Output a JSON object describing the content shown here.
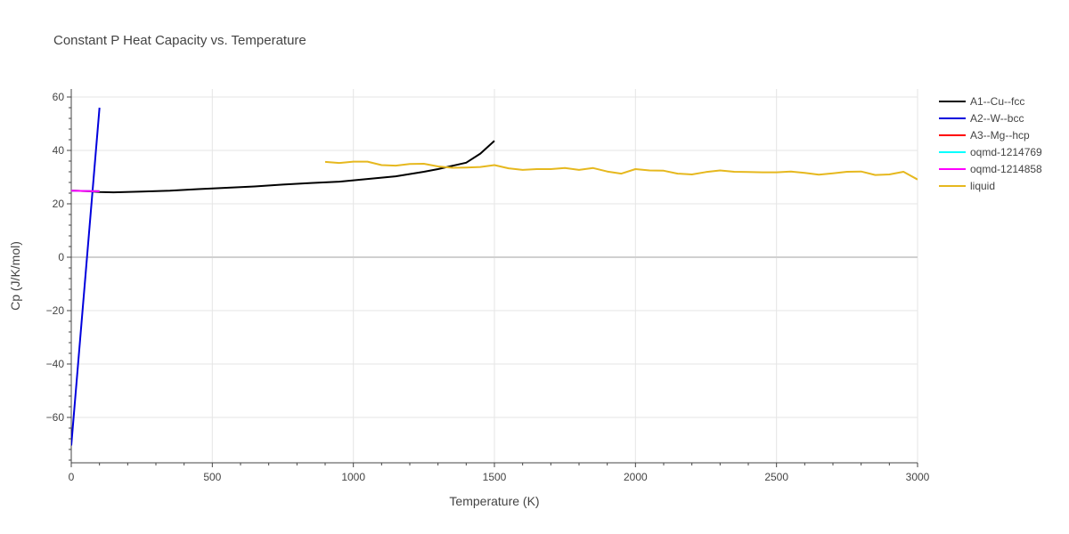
{
  "chart_data": {
    "type": "line",
    "title": "Constant P Heat Capacity vs. Temperature",
    "xlabel": "Temperature (K)",
    "ylabel": "Cp (J/K/mol)",
    "xlim": [
      0,
      3000
    ],
    "ylim": [
      -77,
      63
    ],
    "x_ticks": [
      0,
      500,
      1000,
      1500,
      2000,
      2500,
      3000
    ],
    "x_tick_labels": [
      "0",
      "500",
      "1000",
      "1500",
      "2000",
      "2500",
      "3000"
    ],
    "y_ticks": [
      -60,
      -40,
      -20,
      0,
      20,
      40,
      60
    ],
    "y_tick_labels": [
      "−60",
      "−40",
      "−20",
      "0",
      "20",
      "40",
      "60"
    ],
    "grid": true,
    "legend_position": "right",
    "series": [
      {
        "name": "A1--Cu--fcc",
        "color": "#000000",
        "x": [
          0,
          50,
          100,
          150,
          250,
          350,
          450,
          550,
          650,
          750,
          850,
          950,
          1050,
          1150,
          1250,
          1300,
          1350,
          1400,
          1450,
          1500
        ],
        "y": [
          24.9,
          24.8,
          24.4,
          24.3,
          24.6,
          24.9,
          25.5,
          26.0,
          26.5,
          27.2,
          27.8,
          28.3,
          29.3,
          30.3,
          32.0,
          33.0,
          34.2,
          35.4,
          38.8,
          43.6
        ]
      },
      {
        "name": "A2--W--bcc",
        "color": "#0000dd",
        "x": [
          0,
          100
        ],
        "y": [
          -70.5,
          56.0
        ]
      },
      {
        "name": "A3--Mg--hcp",
        "color": "#ff0000",
        "x": [
          0,
          50,
          100
        ],
        "y": [
          24.9,
          24.8,
          24.7
        ]
      },
      {
        "name": "oqmd-1214769",
        "color": "#00ffff",
        "x": [
          0,
          50,
          100
        ],
        "y": [
          24.9,
          24.8,
          24.7
        ]
      },
      {
        "name": "oqmd-1214858",
        "color": "#ff00ff",
        "x": [
          0,
          50,
          100
        ],
        "y": [
          24.9,
          24.8,
          24.7
        ]
      },
      {
        "name": "liquid",
        "color": "#e6b81e",
        "x": [
          900,
          950,
          1000,
          1050,
          1100,
          1150,
          1200,
          1250,
          1300,
          1350,
          1400,
          1450,
          1500,
          1550,
          1600,
          1650,
          1700,
          1750,
          1800,
          1850,
          1900,
          1950,
          2000,
          2050,
          2100,
          2150,
          2200,
          2250,
          2300,
          2350,
          2400,
          2450,
          2500,
          2550,
          2600,
          2650,
          2700,
          2750,
          2800,
          2850,
          2900,
          2950,
          3000
        ],
        "y": [
          35.7,
          35.3,
          35.8,
          35.8,
          34.5,
          34.3,
          34.9,
          35.0,
          34.0,
          33.5,
          33.6,
          33.8,
          34.5,
          33.3,
          32.7,
          33.0,
          33.0,
          33.4,
          32.7,
          33.4,
          32.1,
          31.3,
          33.0,
          32.5,
          32.4,
          31.3,
          31.0,
          31.9,
          32.5,
          32.0,
          31.9,
          31.8,
          31.8,
          32.1,
          31.6,
          30.9,
          31.4,
          32.0,
          32.1,
          30.8,
          31.0,
          32.0,
          29.1
        ]
      }
    ]
  }
}
